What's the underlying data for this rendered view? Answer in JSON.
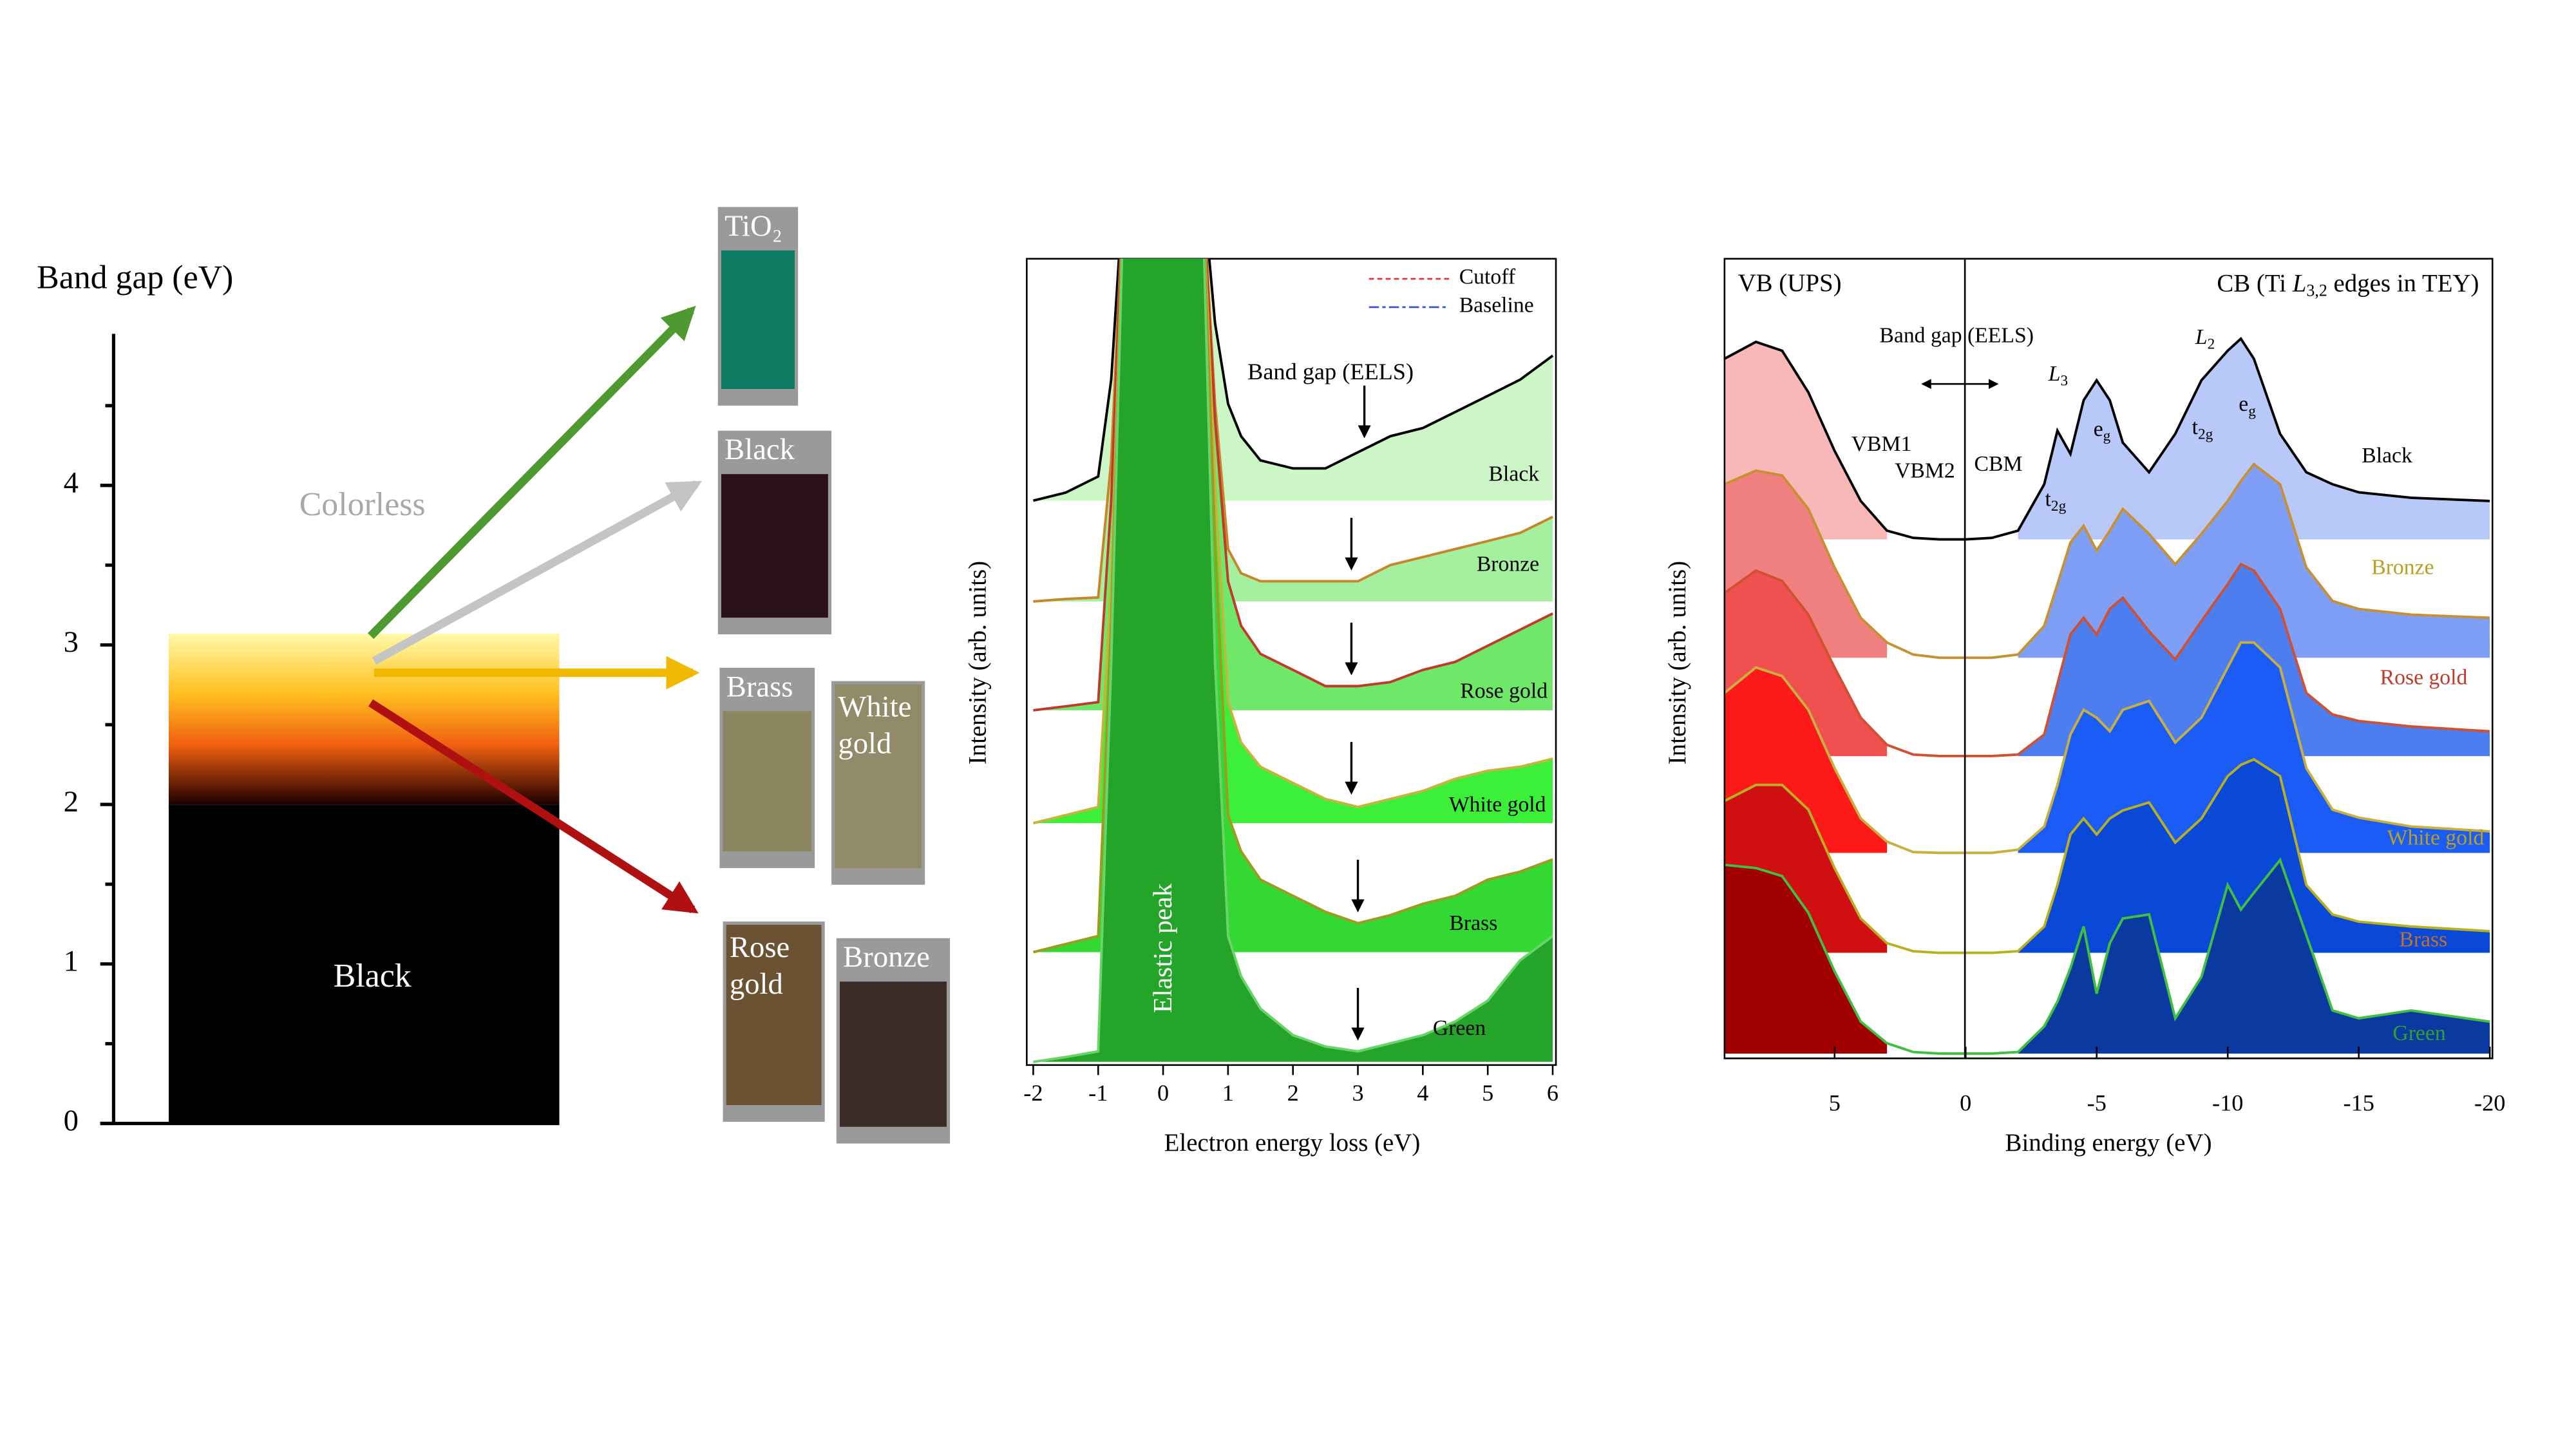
{
  "swatches": [
    {
      "label": "TiO₂",
      "color": "#0e7a62"
    },
    {
      "label": "Black",
      "color": "#2a1019"
    },
    {
      "label": "Brass",
      "color": "#8c8660"
    },
    {
      "label": "White gold",
      "color": "#918b69"
    },
    {
      "label": "Rose gold",
      "color": "#6b5232"
    },
    {
      "label": "Bronze",
      "color": "#3b2b27"
    }
  ],
  "chart_data": [
    {
      "type": "stacked-bar",
      "title": "Band gap (eV)",
      "annotation": "Colorless",
      "segments": [
        {
          "label": "Black",
          "value": 2
        },
        {
          "value": 1.07
        }
      ],
      "ylim": [
        0,
        4.95
      ],
      "yticks": [
        0,
        1,
        2,
        3,
        4
      ],
      "yminor": [
        0.5,
        1.5,
        2.5,
        3.5,
        4.5
      ]
    },
    {
      "type": "line",
      "xlabel": "Electron energy loss (eV)",
      "ylabel": "Intensity (arb. units)",
      "legend": [
        {
          "label": "Cutoff",
          "color": "#e03030"
        },
        {
          "label": "Baseline",
          "color": "#3050d0"
        }
      ],
      "annotations": [
        "Band gap (EELS)",
        "Elastic peak"
      ],
      "xlim": [
        -2.1,
        6.05
      ],
      "xticks": [
        -2,
        -1,
        0,
        1,
        2,
        3,
        4,
        5,
        6
      ],
      "ylim": [
        0,
        100
      ],
      "x": [
        -2,
        -1.5,
        -1,
        -0.8,
        -0.6,
        0.6,
        0.8,
        1,
        1.2,
        1.5,
        2,
        2.5,
        3,
        3.5,
        4,
        4.5,
        5,
        5.5,
        6
      ],
      "series": [
        {
          "name": "Black",
          "color": "#000000",
          "fill": "#ccf6c6",
          "gap_arrow": 3.1,
          "values": [
            70,
            71,
            73,
            85,
            110,
            110,
            92,
            82,
            78,
            75,
            74,
            74,
            76,
            78,
            79,
            81,
            83,
            85,
            88
          ]
        },
        {
          "name": "Bronze",
          "color": "#c8862a",
          "fill": "#a4f09e",
          "gap_arrow": 2.9,
          "values": [
            57.5,
            57.8,
            58,
            75,
            110,
            110,
            82,
            64,
            61,
            60,
            60,
            60,
            60,
            62,
            63,
            64,
            65,
            66,
            68
          ]
        },
        {
          "name": "Rose gold",
          "color": "#c0392b",
          "fill": "#6fe86a",
          "gap_arrow": 2.9,
          "values": [
            44,
            44.5,
            45,
            70,
            110,
            110,
            80,
            60,
            54.5,
            51,
            49,
            47,
            47,
            47.5,
            49,
            50,
            52,
            54,
            56
          ]
        },
        {
          "name": "White gold",
          "color": "#c8b43c",
          "fill": "#3cf03a",
          "gap_arrow": 2.9,
          "values": [
            30,
            31,
            32,
            60,
            110,
            110,
            72,
            45,
            40,
            37,
            35,
            33,
            32,
            33,
            34,
            35.5,
            36.5,
            37,
            38
          ]
        },
        {
          "name": "Brass",
          "color": "#a09a20",
          "fill": "#33d833",
          "gap_arrow": 3,
          "values": [
            14,
            15,
            16,
            55,
            110,
            110,
            65,
            31,
            26.5,
            23,
            21,
            19,
            17.6,
            18.6,
            20,
            21,
            23,
            24,
            25.5
          ]
        },
        {
          "name": "Green",
          "color": "#6ad46a",
          "fill": "#24a52a",
          "gap_arrow": 3,
          "values": [
            0.4,
            1,
            1.7,
            50,
            110,
            110,
            50,
            16,
            11,
            7,
            3.7,
            2.3,
            1.7,
            2.7,
            3.7,
            5.4,
            8,
            13,
            16
          ]
        }
      ]
    },
    {
      "type": "line",
      "xlabel": "Binding energy (eV)",
      "ylabel": "Intensity (arb. units)",
      "vb_label": "VB (UPS)",
      "cb_label": [
        "CB (Ti ",
        "L",
        "3,2",
        " edges in TEY)"
      ],
      "annotations": [
        {
          "text": "Band gap (EELS)"
        },
        {
          "text": "VBM1"
        },
        {
          "text": "VBM2"
        },
        {
          "text": "CBM"
        },
        {
          "text": "L",
          "sub": "3"
        },
        {
          "text": "e",
          "sub": "g"
        },
        {
          "text": "t",
          "sub": "2g"
        },
        {
          "text": "L",
          "sub": "2"
        },
        {
          "text": "t",
          "sub": "2g"
        },
        {
          "text": "e",
          "sub": "g"
        }
      ],
      "xlim": [
        9.2,
        -20.1
      ],
      "xticks": [
        5,
        0,
        -5,
        -10,
        -15,
        -20
      ],
      "ylim": [
        0,
        100
      ],
      "vb_range": [
        9.2,
        3
      ],
      "cb_range": [
        -2,
        -20.1
      ],
      "x": [
        9.2,
        8,
        7,
        6,
        5,
        4,
        3,
        2,
        1,
        0,
        -1,
        -2,
        -3,
        -3.5,
        -4,
        -4.5,
        -5,
        -5.5,
        -6,
        -7,
        -8,
        -9,
        -10,
        -10.5,
        -11,
        -12,
        -13,
        -14,
        -15,
        -17,
        -20
      ],
      "series": [
        {
          "name": "Black",
          "color": "#000000",
          "label_color": "#000000",
          "vb_fill": "#f8b8b8",
          "cb_fill": "#b8c8f8",
          "values": [
            87.5,
            89.6,
            88.5,
            83.3,
            76,
            69.7,
            66,
            65.1,
            64.9,
            64.9,
            65.1,
            66,
            71.8,
            78.5,
            75.6,
            82.3,
            84.8,
            82.3,
            77,
            73.3,
            78.1,
            84.8,
            88.5,
            90,
            87.5,
            78.1,
            73.3,
            71.8,
            70.8,
            70.1,
            69.7
          ]
        },
        {
          "name": "Bronze",
          "color": "#c89030",
          "label_color": "#b8a020",
          "vb_fill": "#f08080",
          "cb_fill": "#7f9ef5",
          "values": [
            71.8,
            73.5,
            72.9,
            68.7,
            61.4,
            55.1,
            52,
            50.5,
            50.1,
            50.1,
            50.1,
            50.5,
            54.1,
            59.3,
            64.5,
            66.6,
            63.5,
            66,
            68.7,
            65.6,
            61.8,
            65.6,
            69.7,
            72.2,
            74.3,
            71.8,
            61.4,
            57.2,
            56.2,
            55.5,
            55.1
          ]
        },
        {
          "name": "Rose gold",
          "color": "#d05030",
          "label_color": "#c0392b",
          "vb_fill": "#f05050",
          "cb_fill": "#4d7ef0",
          "values": [
            58.2,
            61,
            59.7,
            55.5,
            48.9,
            42.6,
            39.2,
            38,
            37.8,
            37.8,
            37.8,
            38,
            40.5,
            46.8,
            53,
            55.1,
            53,
            56.2,
            57.6,
            53.4,
            49.9,
            54.7,
            59.3,
            61.8,
            61,
            56.2,
            45.7,
            43,
            42.2,
            41.5,
            40.9
          ]
        },
        {
          "name": "White gold",
          "color": "#c8b040",
          "label_color": "#b8a020",
          "vb_fill": "#ff1a1a",
          "cb_fill": "#1a5cf5",
          "values": [
            45.7,
            48.9,
            47.8,
            43.6,
            36.3,
            30,
            27.1,
            25.8,
            25.7,
            25.7,
            25.7,
            26.1,
            29,
            34.2,
            40.5,
            43.6,
            42.6,
            40.9,
            43.6,
            44.7,
            39.5,
            42.6,
            48.9,
            52,
            52,
            48.9,
            36.3,
            31.1,
            30.1,
            29,
            28.4
          ]
        },
        {
          "name": "Brass",
          "color": "#b8b020",
          "label_color": "#c07030",
          "vb_fill": "#d01010",
          "cb_fill": "#0a48d8",
          "values": [
            32.2,
            34.2,
            34.2,
            31.1,
            23.8,
            17.5,
            14.4,
            13.4,
            13.2,
            13.2,
            13.2,
            13.4,
            16.5,
            21.7,
            28,
            30,
            28,
            30,
            31,
            32,
            27,
            30,
            35.3,
            36.7,
            37.4,
            35.3,
            21.7,
            18,
            17.1,
            16.5,
            15.9
          ]
        },
        {
          "name": "Green",
          "color": "#40c040",
          "label_color": "#30a030",
          "vb_fill": "#a00000",
          "cb_fill": "#0a3aa0",
          "values": [
            24.2,
            23.8,
            22.8,
            18.2,
            10.9,
            4.6,
            1.9,
            0.8,
            0.6,
            0.6,
            0.6,
            0.8,
            4,
            7.1,
            11.3,
            16.5,
            8.1,
            14.4,
            17.5,
            18,
            5,
            10.2,
            21.7,
            18.6,
            20.7,
            24.8,
            15.4,
            6,
            5,
            6,
            4.6
          ]
        }
      ]
    }
  ]
}
